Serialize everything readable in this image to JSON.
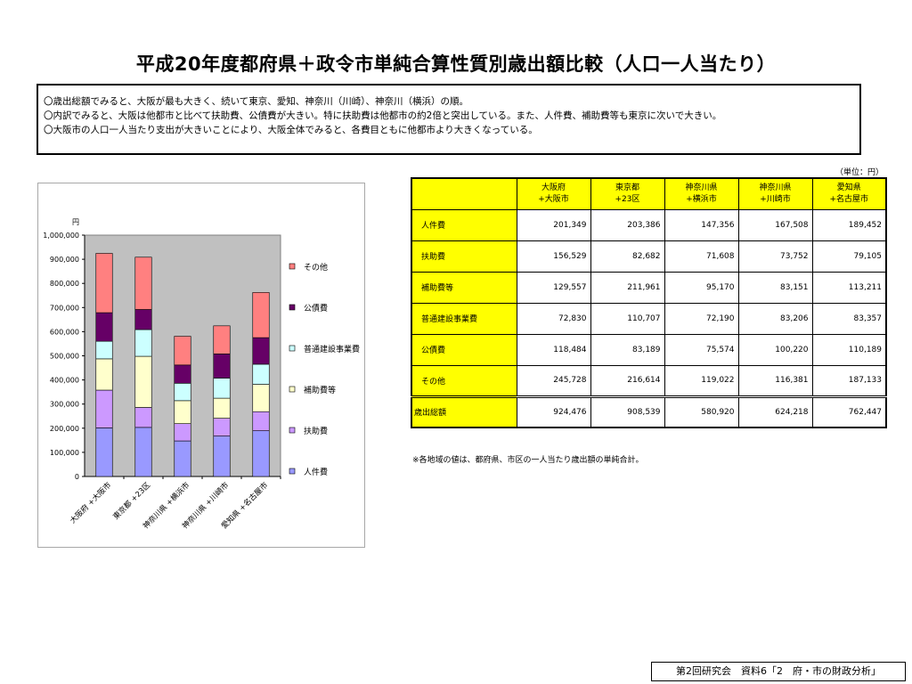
{
  "title": "平成20年度都府県＋政令市単純合算性質別歳出額比較（人口一人当たり）",
  "summary_lines": [
    "〇歳出総額でみると、大阪が最も大きく、続いて東京、愛知、神奈川（川崎）、神奈川（横浜）の順。",
    "〇内訳でみると、大阪は他都市と比べて扶助費、公債費が大きい。特に扶助費は他都市の約2倍と突出している。また、人件費、補助費等も東京に次いで大きい。",
    "〇大阪市の人口一人当たり支出が大きいことにより、大阪全体でみると、各費目ともに他都市より大きくなっている。"
  ],
  "unit_label": "（単位：円）",
  "table": {
    "columns": [
      "大阪府\n+大阪市",
      "東京都\n+23区",
      "神奈川県\n+横浜市",
      "神奈川県\n+川崎市",
      "愛知県\n+名古屋市"
    ],
    "rows": [
      {
        "label": "人件費",
        "values": [
          "201,349",
          "203,386",
          "147,356",
          "167,508",
          "189,452"
        ]
      },
      {
        "label": "扶助費",
        "values": [
          "156,529",
          "82,682",
          "71,608",
          "73,752",
          "79,105"
        ]
      },
      {
        "label": "補助費等",
        "values": [
          "129,557",
          "211,961",
          "95,170",
          "83,151",
          "113,211"
        ]
      },
      {
        "label": "普通建設事業費",
        "values": [
          "72,830",
          "110,707",
          "72,190",
          "83,206",
          "83,357"
        ]
      },
      {
        "label": "公債費",
        "values": [
          "118,484",
          "83,189",
          "75,574",
          "100,220",
          "110,189"
        ]
      },
      {
        "label": "その他",
        "values": [
          "245,728",
          "216,614",
          "119,022",
          "116,381",
          "187,133"
        ]
      }
    ],
    "total": {
      "label": "歳出総額",
      "values": [
        "924,476",
        "908,539",
        "580,920",
        "624,218",
        "762,447"
      ]
    }
  },
  "note": "※各地域の値は、都府県、市区の一人当たり歳出額の単純合計。",
  "footer": "第2回研究会　資料6「2　府・市の財政分析」",
  "chart_data": {
    "type": "bar",
    "stacked": true,
    "y_unit": "円",
    "ylim": [
      0,
      1000000
    ],
    "yticks": [
      0,
      100000,
      200000,
      300000,
      400000,
      500000,
      600000,
      700000,
      800000,
      900000,
      1000000
    ],
    "ytick_labels": [
      "0",
      "100,000",
      "200,000",
      "300,000",
      "400,000",
      "500,000",
      "600,000",
      "700,000",
      "800,000",
      "900,000",
      "1,000,000"
    ],
    "categories": [
      "大阪府 +大阪市",
      "東京都 +23区",
      "神奈川県 +横浜市",
      "神奈川県 +川崎市",
      "愛知県 +名古屋市"
    ],
    "series": [
      {
        "name": "人件費",
        "color": "#9999ff",
        "values": [
          201349,
          203386,
          147356,
          167508,
          189452
        ]
      },
      {
        "name": "扶助費",
        "color": "#cc99ff",
        "values": [
          156529,
          82682,
          71608,
          73752,
          79105
        ]
      },
      {
        "name": "補助費等",
        "color": "#ffffcc",
        "values": [
          129557,
          211961,
          95170,
          83151,
          113211
        ]
      },
      {
        "name": "普通建設事業費",
        "color": "#ccffff",
        "values": [
          72830,
          110707,
          72190,
          83206,
          83357
        ]
      },
      {
        "name": "公債費",
        "color": "#660066",
        "values": [
          118484,
          83189,
          75574,
          100220,
          110189
        ]
      },
      {
        "name": "その他",
        "color": "#ff8080",
        "values": [
          245728,
          216614,
          119022,
          116381,
          187133
        ]
      }
    ],
    "grid": false,
    "plot_background": "#c0c0c0",
    "legend_position": "right"
  }
}
